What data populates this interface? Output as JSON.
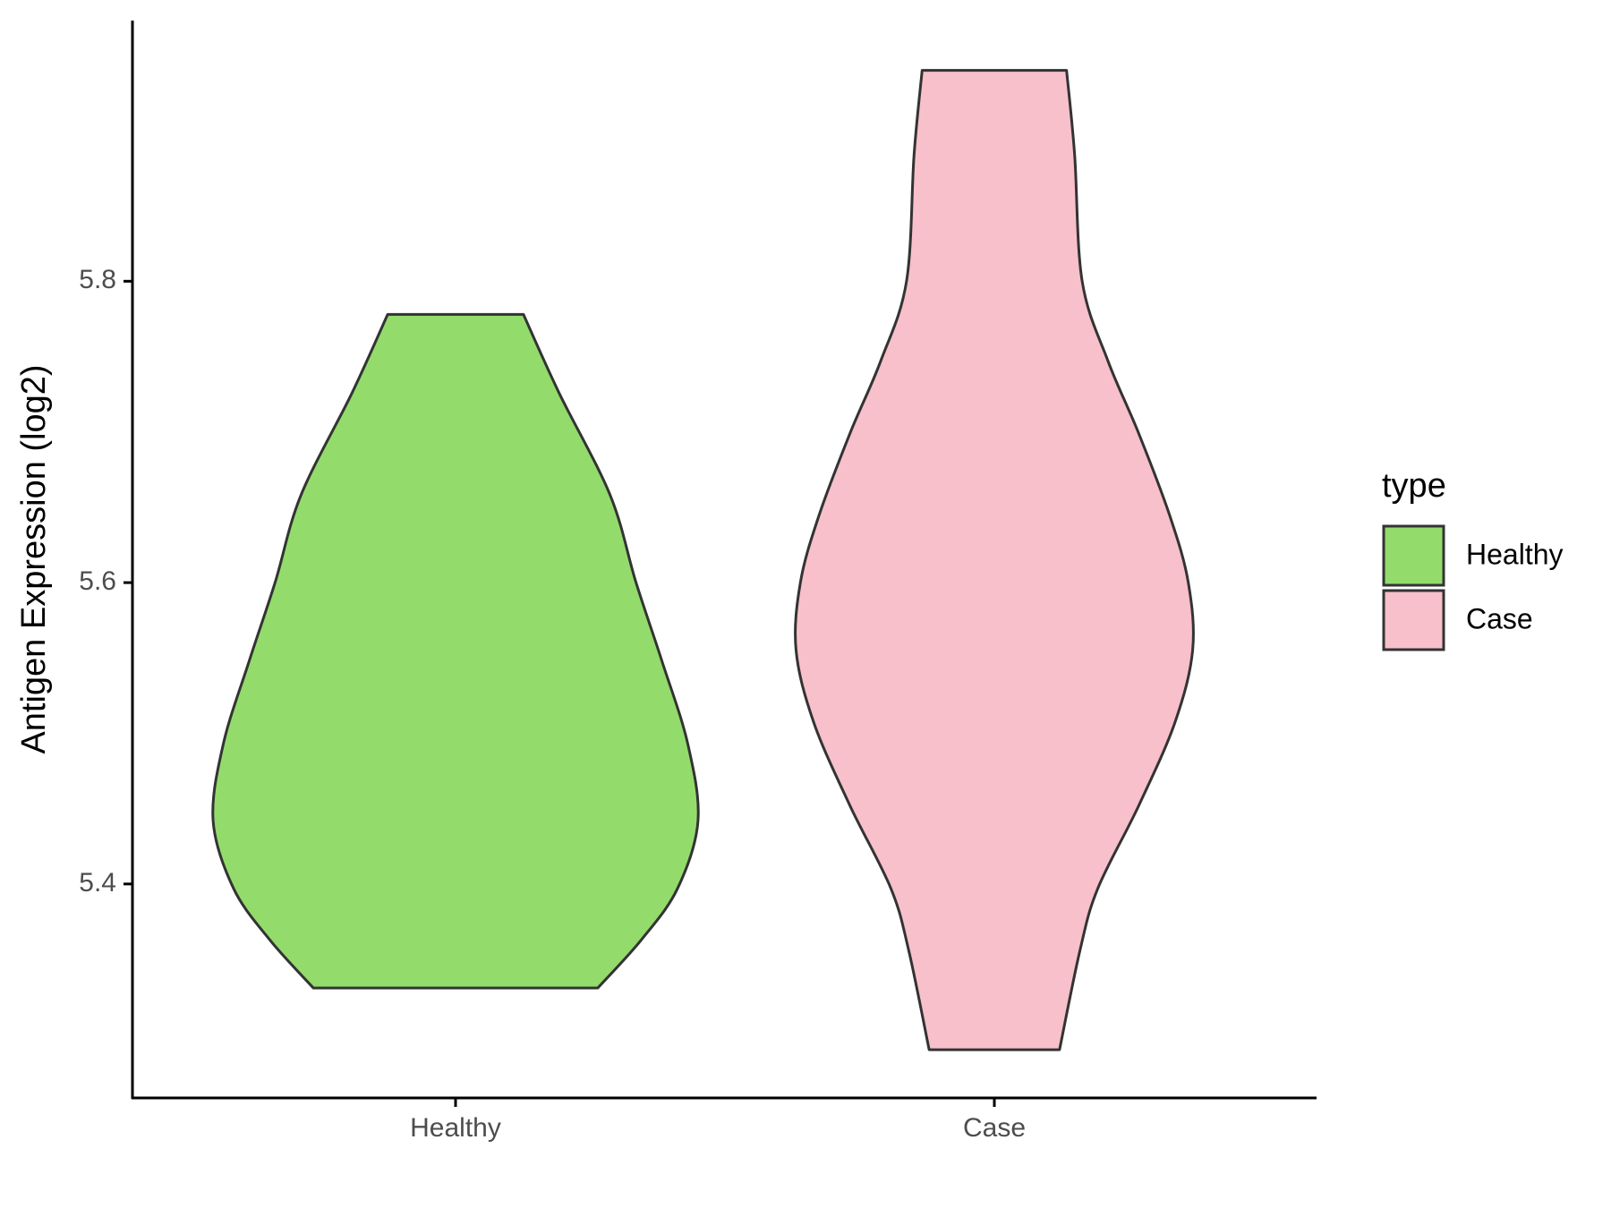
{
  "chart_data": {
    "type": "violin",
    "y_label": "Antigen Expression (log2)",
    "categories": [
      "Healthy",
      "Case"
    ],
    "legend_title": "type",
    "ylim": [
      5.258,
      5.973
    ],
    "yticks": [
      5.4,
      5.6,
      5.8
    ],
    "series": [
      {
        "name": "Healthy",
        "color": "#93dc6c",
        "y": [
          5.778,
          5.726,
          5.658,
          5.6,
          5.548,
          5.493,
          5.442,
          5.397,
          5.363,
          5.331
        ],
        "half_width": [
          0.126,
          0.192,
          0.287,
          0.335,
          0.383,
          0.431,
          0.45,
          0.412,
          0.345,
          0.264
        ]
      },
      {
        "name": "Case",
        "color": "#f7c0cb",
        "y": [
          5.94,
          5.884,
          5.8,
          5.747,
          5.699,
          5.644,
          5.6,
          5.555,
          5.507,
          5.452,
          5.397,
          5.356,
          5.29
        ],
        "half_width": [
          0.134,
          0.149,
          0.163,
          0.211,
          0.268,
          0.326,
          0.36,
          0.368,
          0.335,
          0.268,
          0.192,
          0.159,
          0.121
        ]
      }
    ]
  }
}
